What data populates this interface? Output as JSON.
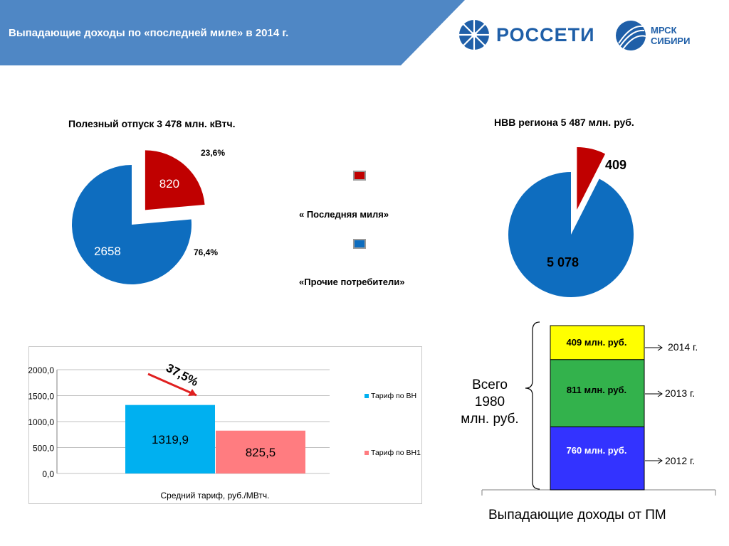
{
  "header": {
    "title": "Выпадающие доходы по  «последней миле» в 2014 г.",
    "logo1_text": "РОССЕТИ",
    "logo2_line1": "МРСК",
    "logo2_line2": "СИБИРИ"
  },
  "colors": {
    "header_blue": "#4f87c5",
    "pie_blue": "#0e6dbf",
    "pie_red": "#c00000",
    "bar_cyan": "#00b0f0",
    "bar_pink": "#ff7c80",
    "stack_yellow": "#ffff00",
    "stack_green": "#33b24c",
    "stack_blue": "#3333ff",
    "arrow_red": "#e02020"
  },
  "legend": {
    "item1": "« Последняя миля»",
    "item2": "«Прочие потребители»"
  },
  "chart_data": [
    {
      "type": "pie",
      "title": "Полезный отпуск 3 478 млн. кВтч.",
      "slices": [
        {
          "value": 820,
          "label": "820",
          "percent_label": "23,6%",
          "color": "#c00000"
        },
        {
          "value": 2658,
          "label": "2658",
          "percent_label": "76,4%",
          "color": "#0e6dbf"
        }
      ]
    },
    {
      "type": "pie",
      "title": "НВВ региона 5 487 млн. руб.",
      "slices": [
        {
          "value": 409,
          "label": "409",
          "color": "#c00000"
        },
        {
          "value": 5078,
          "label": "5 078",
          "color": "#0e6dbf"
        }
      ]
    },
    {
      "type": "bar",
      "xlabel": "Средний тариф, руб./МВтч.",
      "ylim": [
        0,
        2000
      ],
      "yticks": [
        "2000,0",
        "1500,0",
        "1000,0",
        "500,0",
        "0,0"
      ],
      "series": [
        {
          "name": "Тариф по ВН",
          "value": 1319.9,
          "label": "1319,9",
          "color": "#00b0f0"
        },
        {
          "name": "Тариф по ВН1",
          "value": 825.5,
          "label": "825,5",
          "color": "#ff7c80"
        }
      ],
      "annotation": "37,5%"
    },
    {
      "type": "bar",
      "stacked": true,
      "title": "Выпадающие доходы от ПМ",
      "total_line1": "Всего",
      "total_line2": "1980",
      "total_line3": "млн. руб.",
      "segments": [
        {
          "year": "2012 г.",
          "value": 760,
          "label": "760  млн. руб.",
          "color": "#3333ff"
        },
        {
          "year": "2013 г.",
          "value": 811,
          "label": "811 млн. руб.",
          "color": "#33b24c"
        },
        {
          "year": "2014 г.",
          "value": 409,
          "label": "409 млн. руб.",
          "color": "#ffff00"
        }
      ]
    }
  ]
}
